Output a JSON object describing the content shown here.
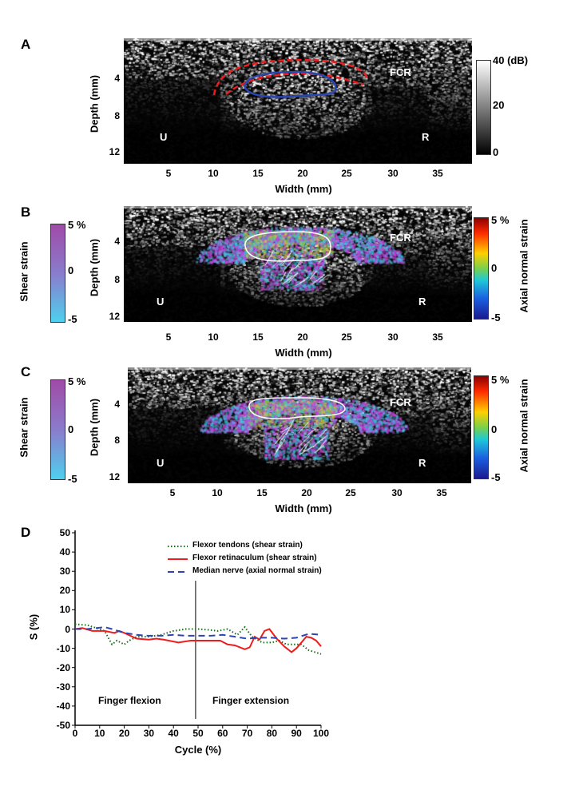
{
  "panels": {
    "A": {
      "label": "A",
      "xlabel": "Width (mm)",
      "ylabel": "Depth (mm)",
      "xticks": [
        "5",
        "10",
        "15",
        "20",
        "25",
        "30",
        "35"
      ],
      "yticks": [
        "4",
        "8",
        "12"
      ],
      "annotations": {
        "left": "U",
        "right": "R",
        "tendon": "FCR"
      },
      "colorbar": {
        "labels": [
          "40 (dB)",
          "20",
          "0"
        ]
      }
    },
    "B": {
      "label": "B",
      "xlabel": "Width (mm)",
      "ylabel": "Depth (mm)",
      "xticks": [
        "5",
        "10",
        "15",
        "20",
        "25",
        "30",
        "35"
      ],
      "yticks": [
        "4",
        "8",
        "12"
      ],
      "annotations": {
        "left": "U",
        "right": "R",
        "tendon": "FCR"
      },
      "shear_colorbar": {
        "title": "Shear strain",
        "labels": [
          "5 %",
          "0",
          "-5"
        ]
      },
      "axial_colorbar": {
        "title": "Axial normal strain",
        "labels": [
          "5 %",
          "0",
          "-5"
        ]
      }
    },
    "C": {
      "label": "C",
      "xlabel": "Width (mm)",
      "ylabel": "Depth (mm)",
      "xticks": [
        "5",
        "10",
        "15",
        "20",
        "25",
        "30",
        "35"
      ],
      "yticks": [
        "4",
        "8",
        "12"
      ],
      "annotations": {
        "left": "U",
        "right": "R",
        "tendon": "FCR"
      },
      "shear_colorbar": {
        "title": "Shear strain",
        "labels": [
          "5 %",
          "0",
          "-5"
        ]
      },
      "axial_colorbar": {
        "title": "Axial normal strain",
        "labels": [
          "5 %",
          "0",
          "-5"
        ]
      }
    },
    "D": {
      "label": "D"
    }
  },
  "chart_data": {
    "type": "line",
    "xlabel": "Cycle (%)",
    "ylabel": "S (%)",
    "xlim": [
      0,
      100
    ],
    "ylim": [
      -50,
      50
    ],
    "xticks": [
      "0",
      "10",
      "20",
      "30",
      "40",
      "50",
      "60",
      "70",
      "80",
      "90",
      "100"
    ],
    "yticks": [
      "50",
      "40",
      "30",
      "20",
      "10",
      "0",
      "-10",
      "-20",
      "-30",
      "-40",
      "-50"
    ],
    "legend_position": "top-center",
    "annotations": {
      "divider_x": 49,
      "left_phase": "Finger flexion",
      "right_phase": "Finger extension"
    },
    "series": [
      {
        "name": "Flexor tendons (shear strain)",
        "color": "#1a6b1a",
        "style": "dotted",
        "x": [
          0,
          5,
          10,
          12,
          15,
          17,
          20,
          22,
          25,
          30,
          35,
          40,
          45,
          50,
          55,
          58,
          62,
          66,
          69,
          72,
          76,
          80,
          83,
          86,
          92,
          95,
          100
        ],
        "y": [
          2.5,
          2,
          0,
          -1,
          -8,
          -6,
          -8,
          -6,
          -4,
          -4,
          -3,
          -1,
          0,
          0,
          -0.5,
          -1,
          0,
          -3,
          1,
          -4,
          -7,
          -7,
          -6,
          -8,
          -8,
          -11,
          -13
        ]
      },
      {
        "name": "Flexor retinaculum (shear strain)",
        "color": "#ee1c1c",
        "style": "solid",
        "x": [
          0,
          3,
          7,
          12,
          16,
          18,
          20,
          25,
          30,
          33,
          36,
          42,
          47,
          55,
          59,
          62,
          65,
          69,
          71,
          73,
          75,
          77,
          79,
          82,
          85,
          88,
          90,
          94,
          96,
          98,
          100
        ],
        "y": [
          0,
          0.5,
          -1,
          -1,
          -2,
          -1,
          -2,
          -5,
          -5.5,
          -5,
          -5.5,
          -7,
          -6,
          -6,
          -6,
          -8,
          -8.5,
          -10.5,
          -9.5,
          -4,
          -5.5,
          -1,
          0,
          -5,
          -9,
          -12,
          -10,
          -4,
          -4.5,
          -6,
          -9
        ]
      },
      {
        "name": "Median nerve (axial normal strain)",
        "color": "#2b46b0",
        "style": "dashed",
        "x": [
          0,
          5,
          12,
          15,
          20,
          25,
          30,
          35,
          40,
          45,
          55,
          60,
          65,
          70,
          75,
          80,
          85,
          90,
          95,
          100
        ],
        "y": [
          0,
          0,
          1,
          0,
          -2,
          -3,
          -3.5,
          -3.5,
          -3,
          -3.5,
          -3.5,
          -3,
          -4,
          -5,
          -4.5,
          -4.5,
          -5,
          -4.5,
          -2.5,
          -3
        ]
      }
    ]
  }
}
